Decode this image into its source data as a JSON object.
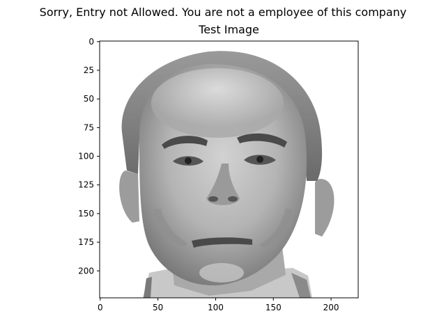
{
  "figure": {
    "suptitle": "Sorry, Entry not Allowed. You are not a employee of this company"
  },
  "chart_data": {
    "type": "image",
    "title": "Test Image",
    "xlabel": "",
    "ylabel": "",
    "image_description": "grayscale portrait photograph of an older man's face",
    "colormap": "gray",
    "xlim": [
      -0.5,
      223.5
    ],
    "ylim": [
      223.5,
      -0.5
    ],
    "y_inverted": true,
    "grid": false,
    "x_ticks": [
      0,
      50,
      100,
      150,
      200
    ],
    "x_tick_labels": [
      "0",
      "50",
      "100",
      "150",
      "200"
    ],
    "y_ticks": [
      0,
      25,
      50,
      75,
      100,
      125,
      150,
      175,
      200
    ],
    "y_tick_labels": [
      "0",
      "25",
      "50",
      "75",
      "100",
      "125",
      "150",
      "175",
      "200"
    ]
  }
}
